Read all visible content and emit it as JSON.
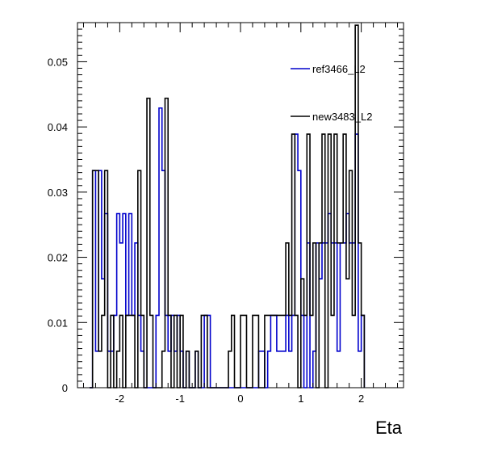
{
  "chart_data": {
    "type": "step-histogram",
    "title": "",
    "xlabel": "Eta",
    "ylabel": "",
    "xlim": [
      -2.7,
      2.7
    ],
    "ylim": [
      0,
      0.056
    ],
    "xticks": [
      {
        "value": -2,
        "label": "-2"
      },
      {
        "value": -1,
        "label": "-1"
      },
      {
        "value": 0,
        "label": "0"
      },
      {
        "value": 1,
        "label": "1"
      },
      {
        "value": 2,
        "label": "2"
      }
    ],
    "yticks": [
      {
        "value": 0,
        "label": "0"
      },
      {
        "value": 0.01,
        "label": "0.01"
      },
      {
        "value": 0.02,
        "label": "0.02"
      },
      {
        "value": 0.03,
        "label": "0.03"
      },
      {
        "value": 0.04,
        "label": "0.04"
      },
      {
        "value": 0.05,
        "label": "0.05"
      }
    ],
    "grid": false,
    "legend_position": "top-right",
    "bin_start": -2.5,
    "bin_width": 0.05,
    "series": [
      {
        "name": "ref3466_L2",
        "color": "#0000cc",
        "values": [
          0,
          0.0333,
          0.0056,
          0.0333,
          0.0167,
          0.0267,
          0.0056,
          0.0056,
          0.0111,
          0.0267,
          0.0222,
          0.0267,
          0.0111,
          0.0267,
          0.0111,
          0.0222,
          0.0111,
          0.0056,
          0,
          0,
          0,
          0,
          0.0111,
          0.0429,
          0.0333,
          0.0111,
          0.0056,
          0.0111,
          0.0056,
          0.0111,
          0.0056,
          0,
          0.0056,
          0,
          0,
          0.0056,
          0,
          0,
          0.0111,
          0.0111,
          0,
          0,
          0,
          0,
          0,
          0,
          0,
          0,
          0,
          0,
          0,
          0,
          0,
          0,
          0,
          0,
          0.0056,
          0.0056,
          0,
          0.0056,
          0.0111,
          0.0111,
          0.0056,
          0.0056,
          0.0056,
          0.0111,
          0.0056,
          0.0111,
          0.0389,
          0.0333,
          0.0111,
          0,
          0.0222,
          0,
          0.0056,
          0.0222,
          0.0167,
          0.0222,
          0.0222,
          0.0267,
          0.0222,
          0.0222,
          0.0056,
          0.0222,
          0.0222,
          0.0267,
          0.0222,
          0.0222,
          0.0389,
          0.0056,
          0.0111
        ],
        "tall_bin_values": [
          0.0533,
          0.0556
        ]
      },
      {
        "name": "new3483_L2",
        "color": "#000000",
        "values": [
          0,
          0.0333,
          0.0333,
          0.0056,
          0.0111,
          0.0333,
          0,
          0.0111,
          0,
          0.0056,
          0.0111,
          0,
          0.0111,
          0.0111,
          0.0111,
          0,
          0.0333,
          0.0111,
          0,
          0.0444,
          0.0111,
          0,
          0,
          0,
          0.0056,
          0.0444,
          0.0111,
          0,
          0.0111,
          0,
          0.0111,
          0,
          0.0056,
          0,
          0,
          0.0056,
          0,
          0.0111,
          0.0111,
          0,
          0,
          0,
          0,
          0,
          0,
          0,
          0.0056,
          0.0111,
          0,
          0,
          0.0111,
          0.0111,
          0,
          0,
          0.0111,
          0.0111,
          0,
          0,
          0.0111,
          0.0111,
          0.0111,
          0.0111,
          0.0111,
          0.0111,
          0.0111,
          0.0222,
          0.0111,
          0.0389,
          0.0111,
          0,
          0.0167,
          0.0111,
          0.0389,
          0.0111,
          0.0222,
          0,
          0.0222,
          0.0389,
          0,
          0.0389,
          0.0111,
          0.0389,
          0.0222,
          0.0222,
          0.0389,
          0.0167,
          0.0333,
          0.0111,
          0.0556,
          0.0222,
          0.0111
        ]
      }
    ]
  }
}
